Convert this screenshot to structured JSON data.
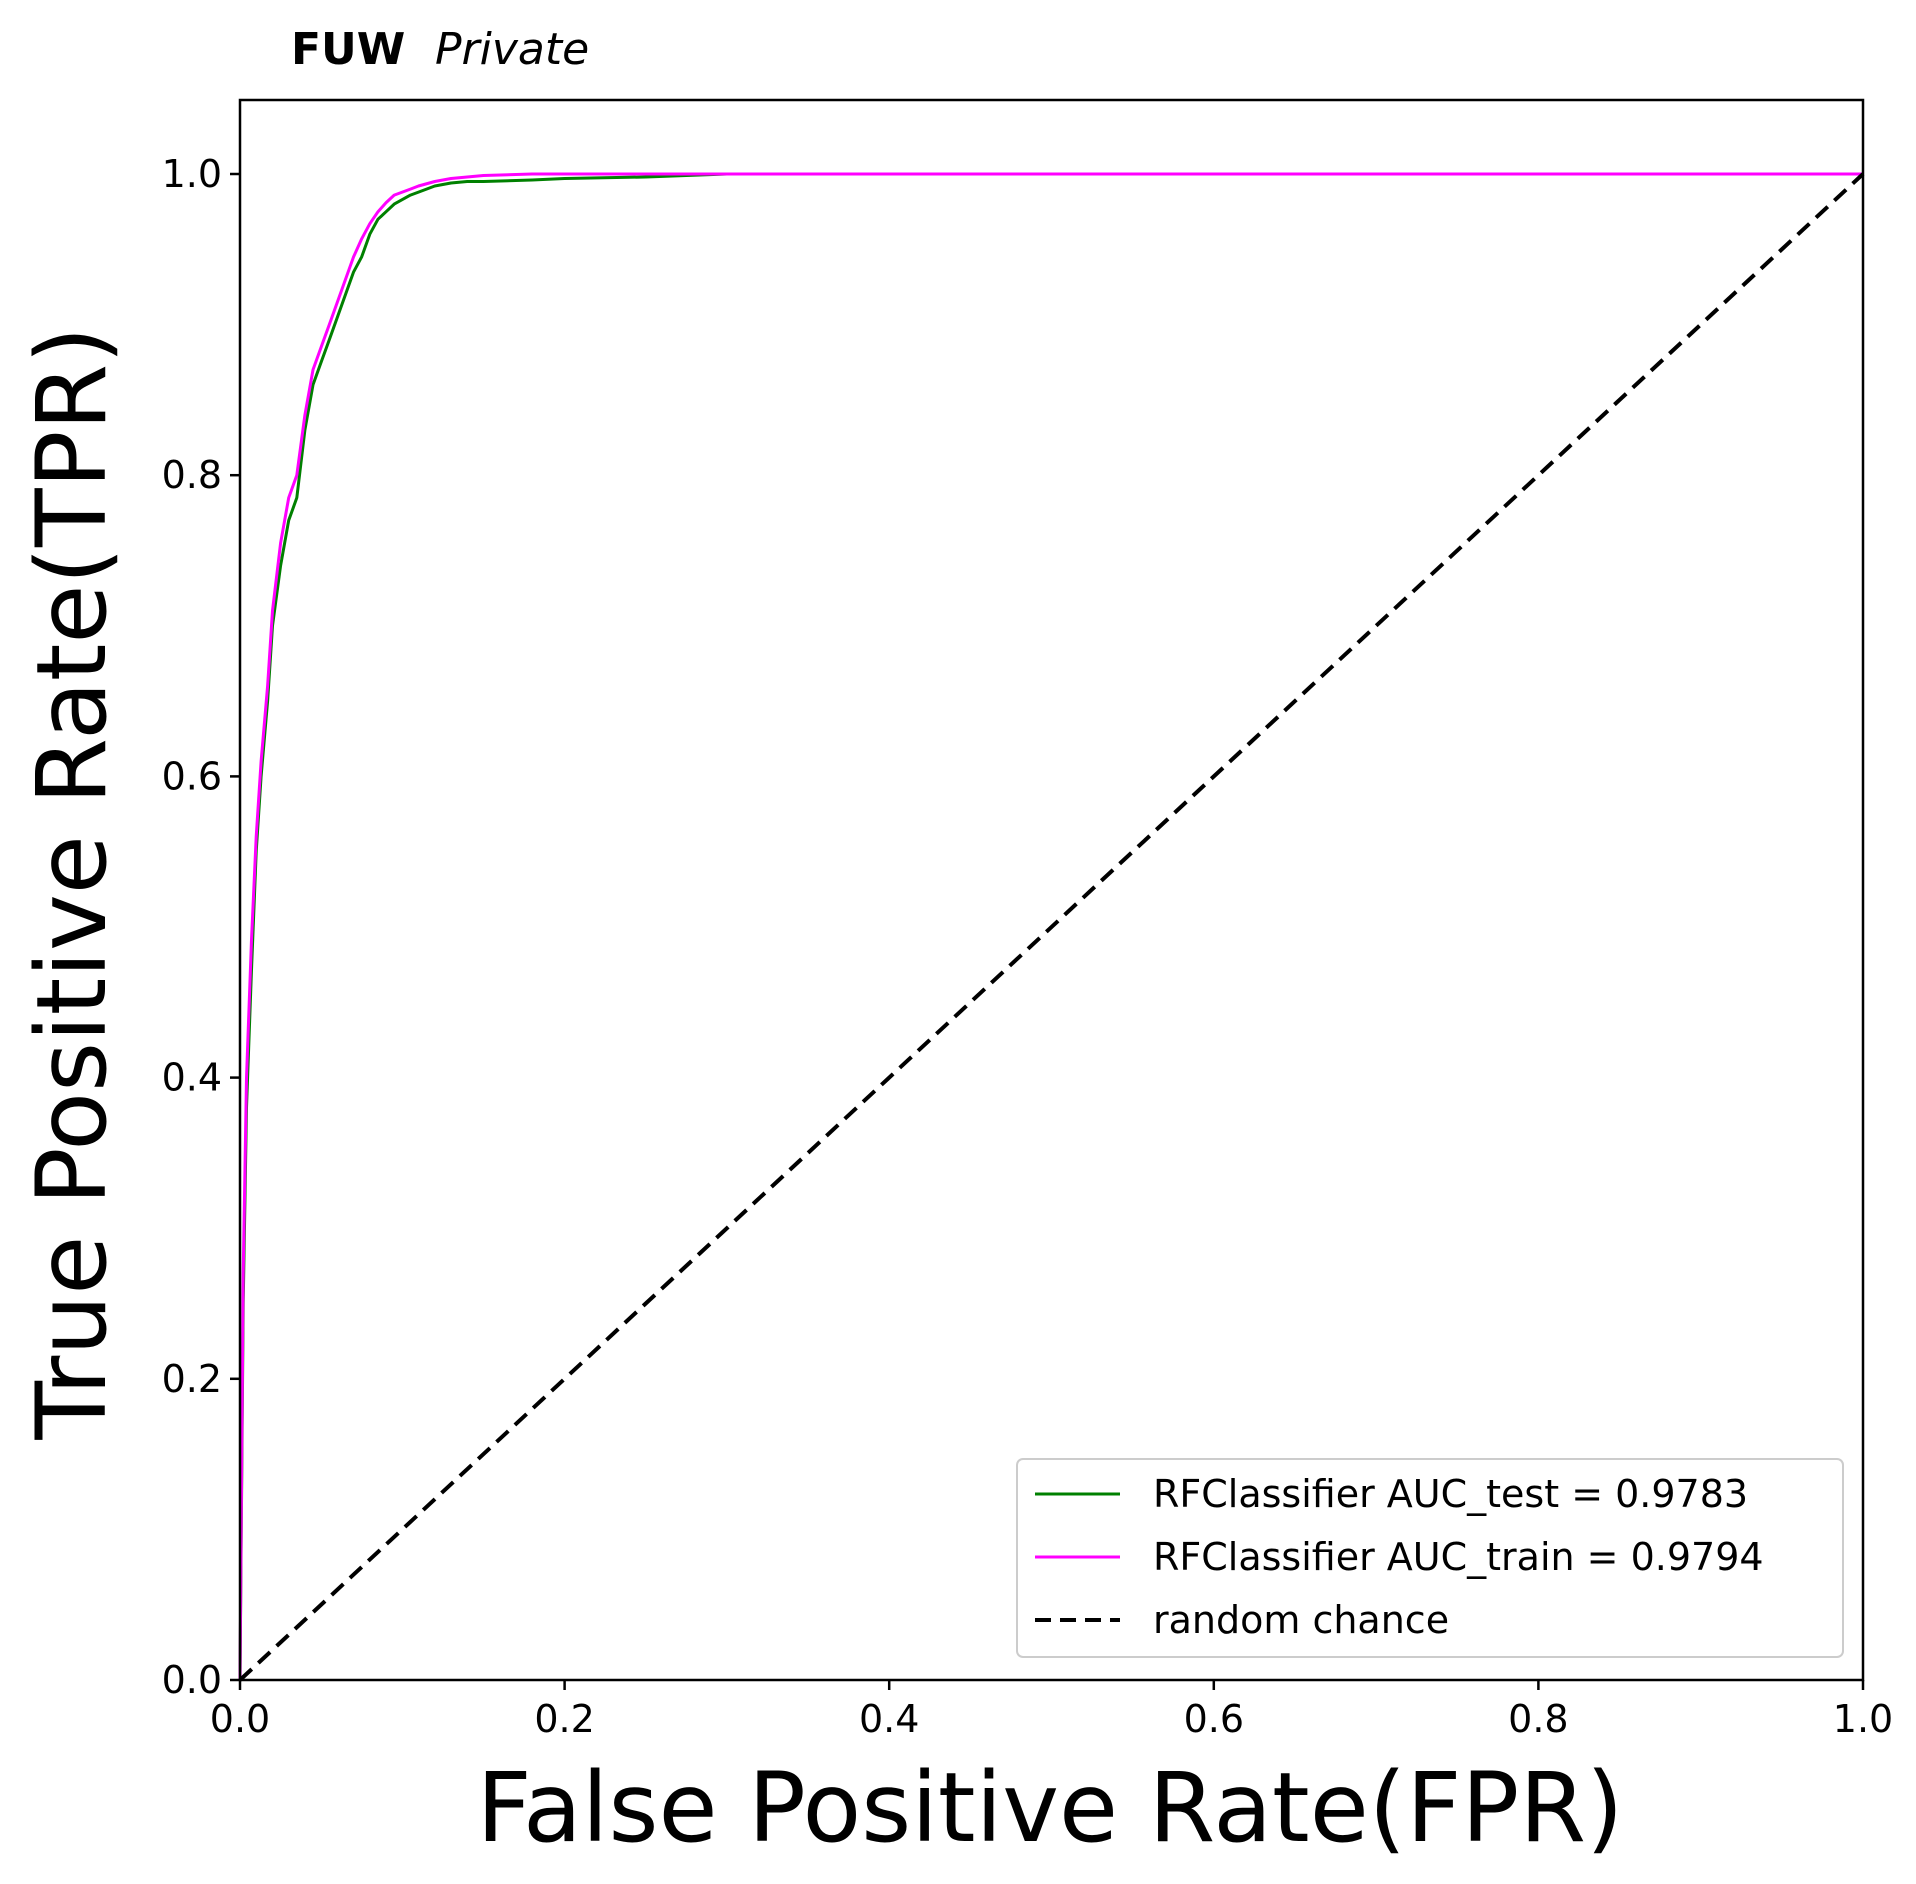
{
  "header": {
    "experiment": "FUW",
    "status": "Private"
  },
  "chart_data": {
    "type": "line",
    "xlabel": "False Positive Rate(FPR)",
    "ylabel": "True Positive Rate(TPR)",
    "xlim": [
      0.0,
      1.0
    ],
    "ylim": [
      0.0,
      1.05
    ],
    "xticks": [
      "0.0",
      "0.2",
      "0.4",
      "0.6",
      "0.8",
      "1.0"
    ],
    "yticks": [
      "0.0",
      "0.2",
      "0.4",
      "0.6",
      "0.8",
      "1.0"
    ],
    "grid": false,
    "legend_position": "lower-right",
    "series": [
      {
        "name": "RFClassifier AUC_test = 0.9783",
        "color": "#008000",
        "style": "solid",
        "x": [
          0.0,
          0.002,
          0.004,
          0.007,
          0.01,
          0.013,
          0.017,
          0.02,
          0.025,
          0.03,
          0.035,
          0.04,
          0.045,
          0.05,
          0.055,
          0.06,
          0.065,
          0.07,
          0.075,
          0.08,
          0.085,
          0.09,
          0.095,
          0.1,
          0.105,
          0.11,
          0.12,
          0.13,
          0.14,
          0.15,
          0.18,
          0.2,
          0.25,
          0.3,
          0.35,
          0.4,
          0.5,
          0.6,
          0.7,
          0.8,
          0.9,
          1.0
        ],
        "y": [
          0.0,
          0.25,
          0.38,
          0.47,
          0.55,
          0.6,
          0.65,
          0.7,
          0.74,
          0.77,
          0.785,
          0.83,
          0.86,
          0.875,
          0.89,
          0.905,
          0.92,
          0.935,
          0.945,
          0.96,
          0.97,
          0.975,
          0.98,
          0.983,
          0.986,
          0.988,
          0.992,
          0.994,
          0.995,
          0.995,
          0.996,
          0.997,
          0.998,
          1.0,
          1.0,
          1.0,
          1.0,
          1.0,
          1.0,
          1.0,
          1.0,
          1.0
        ]
      },
      {
        "name": "RFClassifier AUC_train = 0.9794",
        "color": "#ff00ff",
        "style": "solid",
        "x": [
          0.0,
          0.002,
          0.004,
          0.007,
          0.01,
          0.013,
          0.017,
          0.02,
          0.025,
          0.03,
          0.035,
          0.04,
          0.045,
          0.05,
          0.055,
          0.06,
          0.065,
          0.07,
          0.075,
          0.08,
          0.085,
          0.09,
          0.095,
          0.1,
          0.105,
          0.11,
          0.12,
          0.13,
          0.14,
          0.15,
          0.18,
          0.2,
          0.25,
          0.3,
          0.35,
          0.4,
          0.5,
          0.6,
          0.7,
          0.8,
          0.9,
          1.0
        ],
        "y": [
          0.0,
          0.27,
          0.4,
          0.49,
          0.56,
          0.61,
          0.66,
          0.71,
          0.755,
          0.785,
          0.8,
          0.84,
          0.87,
          0.885,
          0.9,
          0.915,
          0.93,
          0.945,
          0.957,
          0.967,
          0.975,
          0.981,
          0.986,
          0.988,
          0.99,
          0.992,
          0.995,
          0.997,
          0.998,
          0.999,
          1.0,
          1.0,
          1.0,
          1.0,
          1.0,
          1.0,
          1.0,
          1.0,
          1.0,
          1.0,
          1.0,
          1.0
        ]
      },
      {
        "name": "random chance",
        "color": "#000000",
        "style": "dashed",
        "x": [
          0.0,
          1.0
        ],
        "y": [
          0.0,
          1.0
        ]
      }
    ]
  }
}
